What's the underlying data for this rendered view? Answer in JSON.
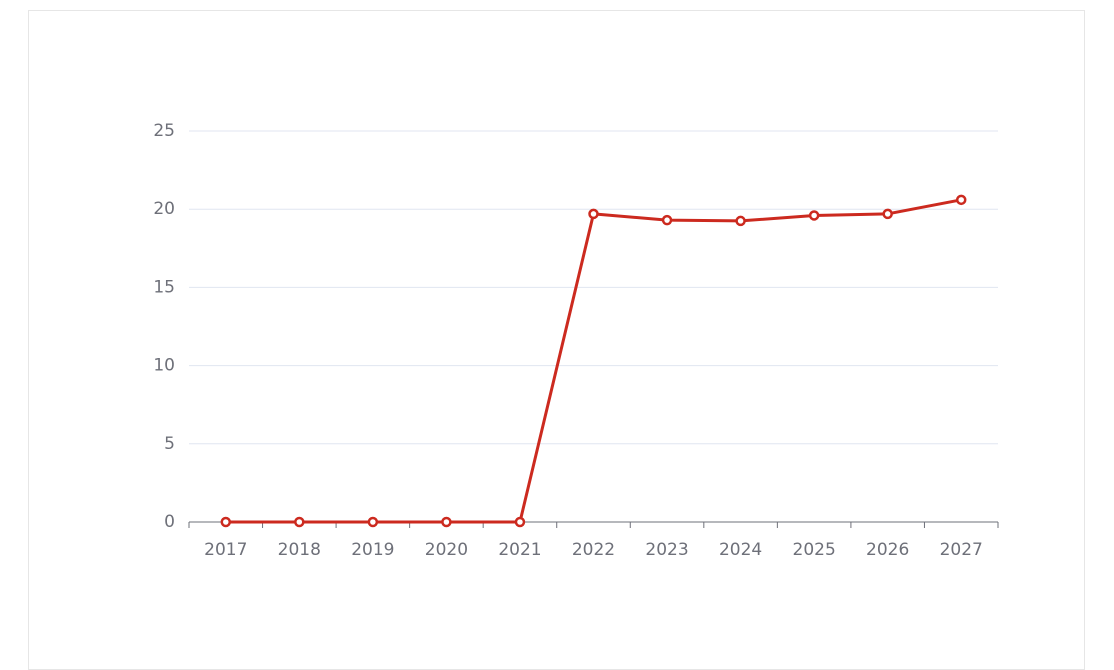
{
  "chart_data": {
    "type": "line",
    "categories": [
      "2017",
      "2018",
      "2019",
      "2020",
      "2021",
      "2022",
      "2023",
      "2024",
      "2025",
      "2026",
      "2027"
    ],
    "values": [
      0,
      0,
      0,
      0,
      0,
      19.7,
      19.3,
      19.25,
      19.6,
      19.7,
      20.6
    ],
    "color": "#cc2a1f",
    "ylim": [
      0,
      25
    ],
    "yticks": [
      0,
      5,
      10,
      15,
      20,
      25
    ],
    "grid": true
  }
}
